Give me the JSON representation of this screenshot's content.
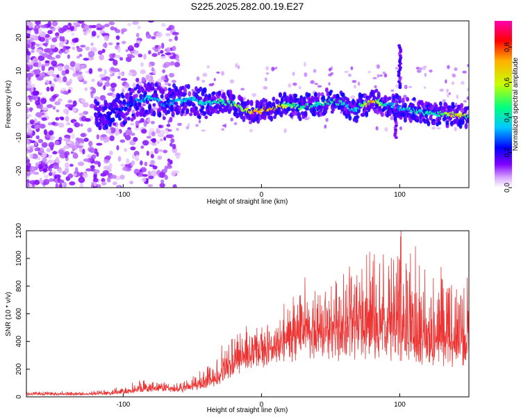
{
  "figure_title": "S225.2025.282.00.19.E27",
  "colorbar": {
    "label": "Normalized spectral amplitude",
    "ticks": [
      "0.0",
      "0.2",
      "0.4",
      "0.6",
      "0.8"
    ],
    "tick_values": [
      0.0,
      0.2,
      0.4,
      0.6,
      0.8
    ],
    "range": [
      0.0,
      0.95
    ],
    "colors": [
      "#ffffff",
      "#d9a8ff",
      "#8000ff",
      "#0000ff",
      "#00c8ff",
      "#00ff80",
      "#c8ff00",
      "#ffb000",
      "#ff0000",
      "#ff00b0"
    ]
  },
  "chart_data": [
    {
      "type": "heatmap",
      "title": "",
      "xlabel": "Height of straight line (km)",
      "ylabel": "Frequency (Hz)",
      "xlim": [
        -170,
        150
      ],
      "ylim": [
        -25,
        25
      ],
      "xticks": [
        -100,
        0,
        100
      ],
      "xtick_labels": [
        "-100",
        "0",
        "100"
      ],
      "yticks": [
        -20,
        -10,
        0,
        10,
        20
      ],
      "ytick_labels": [
        "-20",
        "-10",
        "0",
        "10",
        "20"
      ],
      "ridge": {
        "x": [
          -115,
          -100,
          -90,
          -80,
          -70,
          -60,
          -50,
          -40,
          -30,
          -20,
          -10,
          0,
          10,
          20,
          30,
          40,
          50,
          60,
          65,
          70,
          80,
          90,
          100,
          110,
          120,
          130,
          140,
          150
        ],
        "freq": [
          -4,
          -1,
          1,
          2,
          0,
          1,
          2,
          0,
          1,
          0,
          -2,
          -2,
          -1,
          0,
          -1,
          0,
          1,
          0,
          -2,
          -1,
          1,
          0,
          -1,
          -2,
          -3,
          -3,
          -3,
          -4
        ],
        "amplitude": [
          0.2,
          0.3,
          0.35,
          0.45,
          0.35,
          0.4,
          0.45,
          0.45,
          0.55,
          0.6,
          0.75,
          0.85,
          0.8,
          0.6,
          0.55,
          0.5,
          0.55,
          0.5,
          0.4,
          0.45,
          0.85,
          0.45,
          0.4,
          0.5,
          0.5,
          0.55,
          0.8,
          0.6
        ]
      },
      "spikes": [
        {
          "x": 100,
          "freq_range": [
            5,
            18
          ]
        },
        {
          "x": 97,
          "freq_range": [
            -10,
            0
          ]
        }
      ]
    },
    {
      "type": "line",
      "title": "",
      "xlabel": "Height of straight line (km)",
      "ylabel": "SNR (10 * v/v)",
      "xlim": [
        -170,
        150
      ],
      "ylim": [
        0,
        1200
      ],
      "xticks": [
        -100,
        0,
        100
      ],
      "xtick_labels": [
        "-100",
        "0",
        "100"
      ],
      "yticks": [
        0,
        200,
        400,
        600,
        800,
        1000,
        1200
      ],
      "ytick_labels": [
        "0",
        "200",
        "400",
        "600",
        "800",
        "1000",
        "1200"
      ],
      "series": [
        {
          "name": "SNR",
          "color": "#ee3333",
          "envelope": {
            "x": [
              -170,
              -130,
              -110,
              -100,
              -90,
              -80,
              -70,
              -60,
              -50,
              -40,
              -30,
              -20,
              -10,
              0,
              10,
              20,
              30,
              40,
              50,
              60,
              70,
              80,
              90,
              100,
              110,
              120,
              130,
              140,
              150
            ],
            "base": [
              15,
              15,
              18,
              25,
              40,
              45,
              50,
              45,
              55,
              70,
              110,
              200,
              250,
              280,
              320,
              340,
              380,
              380,
              380,
              360,
              380,
              350,
              350,
              350,
              320,
              300,
              300,
              280,
              300
            ],
            "peak": [
              40,
              40,
              50,
              80,
              120,
              110,
              110,
              100,
              150,
              220,
              320,
              480,
              500,
              520,
              560,
              620,
              820,
              750,
              750,
              900,
              950,
              1000,
              950,
              1200,
              1050,
              1000,
              950,
              900,
              900
            ]
          }
        }
      ]
    }
  ]
}
